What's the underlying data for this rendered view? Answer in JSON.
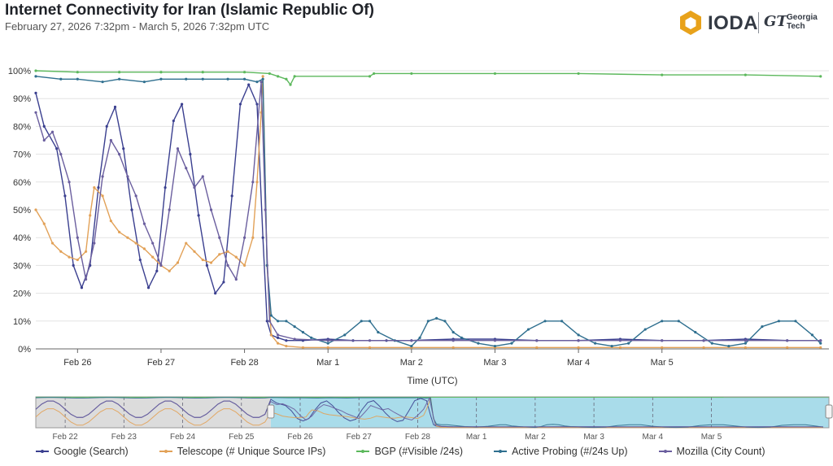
{
  "header": {
    "title": "Internet Connectivity for Iran (Islamic Republic Of)",
    "subtitle": "February 27, 2026 7:32pm - March 5, 2026 7:32pm UTC"
  },
  "brand": {
    "ioda_text": "IODA",
    "gt_mark": "GT",
    "gt_line1": "Georgia",
    "gt_line2": "Tech",
    "logo_color": "#e8a21b"
  },
  "chart_data": {
    "type": "line",
    "title": "",
    "xlabel": "Time (UTC)",
    "ylabel": "",
    "ylim": [
      0,
      100
    ],
    "yticks": [
      "0%",
      "10%",
      "20%",
      "30%",
      "40%",
      "50%",
      "60%",
      "70%",
      "80%",
      "90%",
      "100%"
    ],
    "x_tick_labels": [
      "Feb 26",
      "Feb 27",
      "Feb 28",
      "Mar 1",
      "Mar 2",
      "Mar 3",
      "Mar 4",
      "Mar 5"
    ],
    "x_range_days": [
      25.5,
      35.0
    ],
    "grid": "horizontal",
    "legend_position": "bottom",
    "series": [
      {
        "name": "Google (Search)",
        "color": "#3a3f8f",
        "x": [
          25.5,
          25.6,
          25.75,
          25.85,
          25.95,
          26.05,
          26.15,
          26.25,
          26.35,
          26.45,
          26.55,
          26.65,
          26.75,
          26.85,
          26.95,
          27.05,
          27.15,
          27.25,
          27.35,
          27.45,
          27.55,
          27.65,
          27.75,
          27.85,
          27.95,
          28.05,
          28.15,
          28.22,
          28.27,
          28.32,
          28.4,
          28.5,
          28.7,
          29.0,
          29.3,
          29.7,
          30.0,
          30.5,
          31.0,
          31.5,
          32.0,
          32.5,
          33.0,
          33.5,
          34.0,
          34.5,
          34.9
        ],
        "y": [
          92,
          80,
          72,
          55,
          30,
          22,
          30,
          58,
          80,
          87,
          72,
          50,
          32,
          22,
          28,
          58,
          82,
          88,
          70,
          48,
          30,
          20,
          24,
          55,
          88,
          95,
          88,
          40,
          10,
          5,
          4,
          3,
          3,
          3.5,
          3,
          3,
          3,
          3.5,
          3.5,
          3,
          3,
          3.5,
          3,
          3,
          3.5,
          3,
          3
        ]
      },
      {
        "name": "Telescope (# Unique Source IPs)",
        "color": "#e2a157",
        "x": [
          25.5,
          25.6,
          25.7,
          25.8,
          25.9,
          26.0,
          26.1,
          26.15,
          26.2,
          26.3,
          26.4,
          26.5,
          26.6,
          26.7,
          26.8,
          26.9,
          27.0,
          27.1,
          27.2,
          27.3,
          27.4,
          27.5,
          27.6,
          27.7,
          27.8,
          27.9,
          28.0,
          28.1,
          28.15,
          28.2,
          28.22,
          28.27,
          28.32,
          28.4,
          28.5,
          28.7,
          29.0,
          29.5,
          30.0,
          30.5,
          31.0,
          31.5,
          32.0,
          32.5,
          33.0,
          33.5,
          34.0,
          34.5,
          34.9
        ],
        "y": [
          50,
          45,
          38,
          35,
          33,
          32,
          35,
          48,
          58,
          55,
          46,
          42,
          40,
          38,
          36,
          33,
          30,
          28,
          31,
          38,
          35,
          32,
          31,
          34,
          35,
          33,
          30,
          40,
          60,
          85,
          98,
          30,
          5,
          2,
          1,
          0.5,
          0.5,
          0.5,
          0.5,
          0.5,
          0.5,
          0.5,
          0.5,
          0.5,
          0.5,
          0.5,
          0.5,
          0.5,
          0.5
        ]
      },
      {
        "name": "BGP (#Visible /24s)",
        "color": "#5cb85c",
        "x": [
          25.5,
          26.0,
          26.5,
          27.0,
          27.5,
          28.0,
          28.3,
          28.4,
          28.5,
          28.55,
          28.6,
          29.5,
          29.55,
          30.0,
          31.0,
          32.0,
          33.0,
          34.0,
          34.9
        ],
        "y": [
          100,
          99.5,
          99.5,
          99.5,
          99.5,
          99.5,
          99,
          98,
          97,
          95,
          98,
          98,
          99,
          99,
          99,
          99,
          98.5,
          98.5,
          98
        ]
      },
      {
        "name": "Active Probing (#/24s Up)",
        "color": "#2f6f8f",
        "x": [
          25.5,
          25.8,
          26.0,
          26.3,
          26.5,
          26.8,
          27.0,
          27.3,
          27.5,
          27.8,
          28.0,
          28.15,
          28.22,
          28.27,
          28.32,
          28.4,
          28.5,
          28.6,
          28.7,
          28.8,
          29.0,
          29.2,
          29.4,
          29.5,
          29.6,
          29.8,
          30.0,
          30.1,
          30.2,
          30.3,
          30.4,
          30.5,
          30.6,
          30.8,
          31.0,
          31.2,
          31.4,
          31.6,
          31.8,
          32.0,
          32.2,
          32.4,
          32.6,
          32.8,
          33.0,
          33.2,
          33.4,
          33.6,
          33.8,
          34.0,
          34.2,
          34.4,
          34.6,
          34.8,
          34.9
        ],
        "y": [
          98,
          97,
          97,
          96,
          97,
          96,
          97,
          97,
          97,
          97,
          97,
          96,
          97,
          30,
          12,
          10,
          10,
          8,
          6,
          4,
          2,
          5,
          10,
          10,
          6,
          3,
          1,
          4,
          10,
          11,
          10,
          6,
          4,
          2,
          1,
          2,
          7,
          10,
          10,
          5,
          2,
          1,
          2,
          7,
          10,
          10,
          6,
          2,
          1,
          2,
          8,
          10,
          10,
          5,
          2
        ]
      },
      {
        "name": "Mozilla (City Count)",
        "color": "#6a5e9e",
        "x": [
          25.5,
          25.6,
          25.7,
          25.8,
          25.9,
          26.0,
          26.1,
          26.2,
          26.3,
          26.4,
          26.5,
          26.6,
          26.7,
          26.8,
          26.9,
          27.0,
          27.1,
          27.2,
          27.3,
          27.4,
          27.5,
          27.6,
          27.7,
          27.8,
          27.9,
          28.0,
          28.1,
          28.2,
          28.25,
          28.3,
          28.4,
          28.6,
          29.0,
          29.5,
          30.0,
          30.5,
          31.0,
          31.5,
          32.0,
          32.5,
          33.0,
          33.5,
          34.0,
          34.5,
          34.9
        ],
        "y": [
          85,
          75,
          78,
          70,
          60,
          40,
          25,
          38,
          62,
          75,
          70,
          62,
          55,
          45,
          38,
          30,
          50,
          72,
          65,
          58,
          62,
          50,
          40,
          30,
          25,
          40,
          60,
          96,
          50,
          10,
          5,
          3.5,
          3,
          3,
          3,
          3,
          3,
          3,
          3,
          3,
          3,
          3,
          3,
          3,
          3
        ]
      }
    ],
    "navigator": {
      "x_tick_labels": [
        "Feb 22",
        "Feb 23",
        "Feb 24",
        "Feb 25",
        "Feb 26",
        "Feb 27",
        "Feb 28",
        "Mar 1",
        "Mar 2",
        "Mar 3",
        "Mar 4",
        "Mar 5"
      ]
    }
  },
  "legend": [
    {
      "label": "Google (Search)",
      "color": "#3a3f8f"
    },
    {
      "label": "Telescope (# Unique Source IPs)",
      "color": "#e2a157"
    },
    {
      "label": "BGP (#Visible /24s)",
      "color": "#5cb85c"
    },
    {
      "label": "Active Probing (#/24s Up)",
      "color": "#2f6f8f"
    },
    {
      "label": "Mozilla (City Count)",
      "color": "#6a5e9e"
    }
  ]
}
